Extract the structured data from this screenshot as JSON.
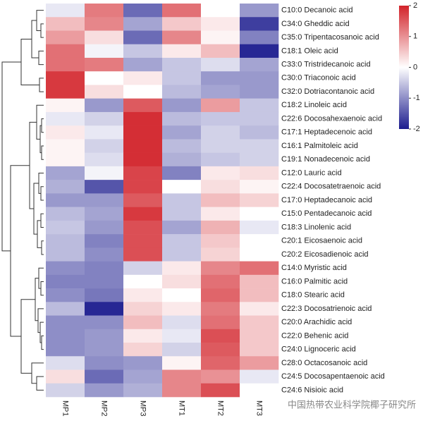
{
  "chart_data": {
    "type": "heatmap",
    "rows": [
      "C10:0 Decanoic acid",
      "C34:0 Gheddic acid",
      "C35:0 Tripentacosanoic acid",
      "C18:1 Oleic acid",
      "C33:0 Tristridecanoic acid",
      "C30:0 Triaconoic acid",
      "C32:0 Dotriacontanoic acid",
      "C18:2 Linoleic acid",
      "C22:6 Docosahexaenoic acid",
      "C17:1 Heptadecenoic acid",
      "C16:1 Palmitoleic acid",
      "C19:1 Nonadecenoic acid",
      "C12:0 Lauric acid",
      "C22:4 Docosatetraenoic acid",
      "C17:0 Heptadecanoic acid",
      "C15:0 Pentadecanoic acid",
      "C18:3 Linolenic acid",
      "C20:1 Eicosaenoic acid",
      "C20:2 Eicosadienoic acid",
      "C14:0 Myristic acid",
      "C16:0 Palmitic acid",
      "C18:0 Stearic acid",
      "C22:3 Docosatrienoic acid",
      "C20:0 Arachidic acid",
      "C22:0 Behenic acid",
      "C24:0 Lignoceric acid",
      "C28:0 Octacosanoic acid",
      "C24:5 Docosapentaenoic acid",
      "C24:6 Nisioic acid"
    ],
    "columns": [
      "MP1",
      "MP2",
      "MP3",
      "MT1",
      "MT2",
      "MT3"
    ],
    "values": [
      [
        -0.2,
        1.2,
        -1.3,
        1.3,
        0.0,
        -0.9
      ],
      [
        0.6,
        1.1,
        -0.8,
        0.5,
        0.2,
        -1.7
      ],
      [
        0.9,
        0.3,
        -1.3,
        1.1,
        0.1,
        -1.1
      ],
      [
        1.3,
        -0.1,
        -0.5,
        0.2,
        0.6,
        -1.9
      ],
      [
        1.3,
        1.2,
        -0.8,
        -0.5,
        -0.3,
        -0.8
      ],
      [
        1.8,
        0.0,
        0.2,
        -0.5,
        -0.9,
        -0.9
      ],
      [
        1.8,
        0.3,
        0.0,
        -0.6,
        -0.8,
        -0.9
      ],
      [
        0.1,
        -0.9,
        1.5,
        -0.9,
        0.9,
        -0.5
      ],
      [
        -0.2,
        -0.4,
        1.9,
        -0.6,
        -0.5,
        -0.5
      ],
      [
        0.2,
        -0.2,
        1.9,
        -0.8,
        -0.4,
        -0.6
      ],
      [
        0.1,
        -0.4,
        1.9,
        -0.6,
        -0.4,
        -0.4
      ],
      [
        0.1,
        -0.3,
        1.9,
        -0.7,
        -0.5,
        -0.4
      ],
      [
        -0.8,
        -0.1,
        1.7,
        -1.1,
        0.2,
        0.3
      ],
      [
        -0.7,
        -1.5,
        1.7,
        0.0,
        0.3,
        0.1
      ],
      [
        -0.9,
        -0.9,
        1.5,
        -0.5,
        0.6,
        0.4
      ],
      [
        -0.6,
        -0.8,
        1.8,
        -0.5,
        0.2,
        0.0
      ],
      [
        -0.5,
        -0.9,
        1.6,
        -0.8,
        0.7,
        -0.2
      ],
      [
        -0.6,
        -1.1,
        1.6,
        -0.5,
        0.5,
        0.0
      ],
      [
        -0.6,
        -1.0,
        1.6,
        -0.5,
        0.4,
        0.0
      ],
      [
        -1.0,
        -1.1,
        -0.4,
        0.2,
        1.1,
        1.3
      ],
      [
        -1.1,
        -1.1,
        0.0,
        0.3,
        1.3,
        0.6
      ],
      [
        -1.0,
        -1.2,
        0.2,
        0.0,
        1.4,
        0.6
      ],
      [
        -0.6,
        -1.9,
        0.4,
        0.2,
        1.2,
        0.2
      ],
      [
        -1.0,
        -1.0,
        0.6,
        -0.3,
        1.3,
        0.5
      ],
      [
        -1.0,
        -0.9,
        0.2,
        -0.2,
        1.6,
        0.5
      ],
      [
        -1.0,
        -0.9,
        0.4,
        -0.4,
        1.5,
        0.5
      ],
      [
        -0.3,
        -1.0,
        -0.9,
        0.1,
        1.4,
        0.9
      ],
      [
        0.3,
        -1.3,
        -0.8,
        1.1,
        1.0,
        -0.2
      ],
      [
        -0.4,
        -0.9,
        -0.7,
        1.1,
        1.6,
        0.0
      ]
    ],
    "colors": [
      "#1c1c8e",
      "#ffffff",
      "#d2232a"
    ],
    "clim": [
      -2,
      2
    ],
    "cticks": [
      -2,
      -1,
      0,
      1,
      2
    ],
    "watermark": "中国热带农业科学院椰子研究所"
  }
}
